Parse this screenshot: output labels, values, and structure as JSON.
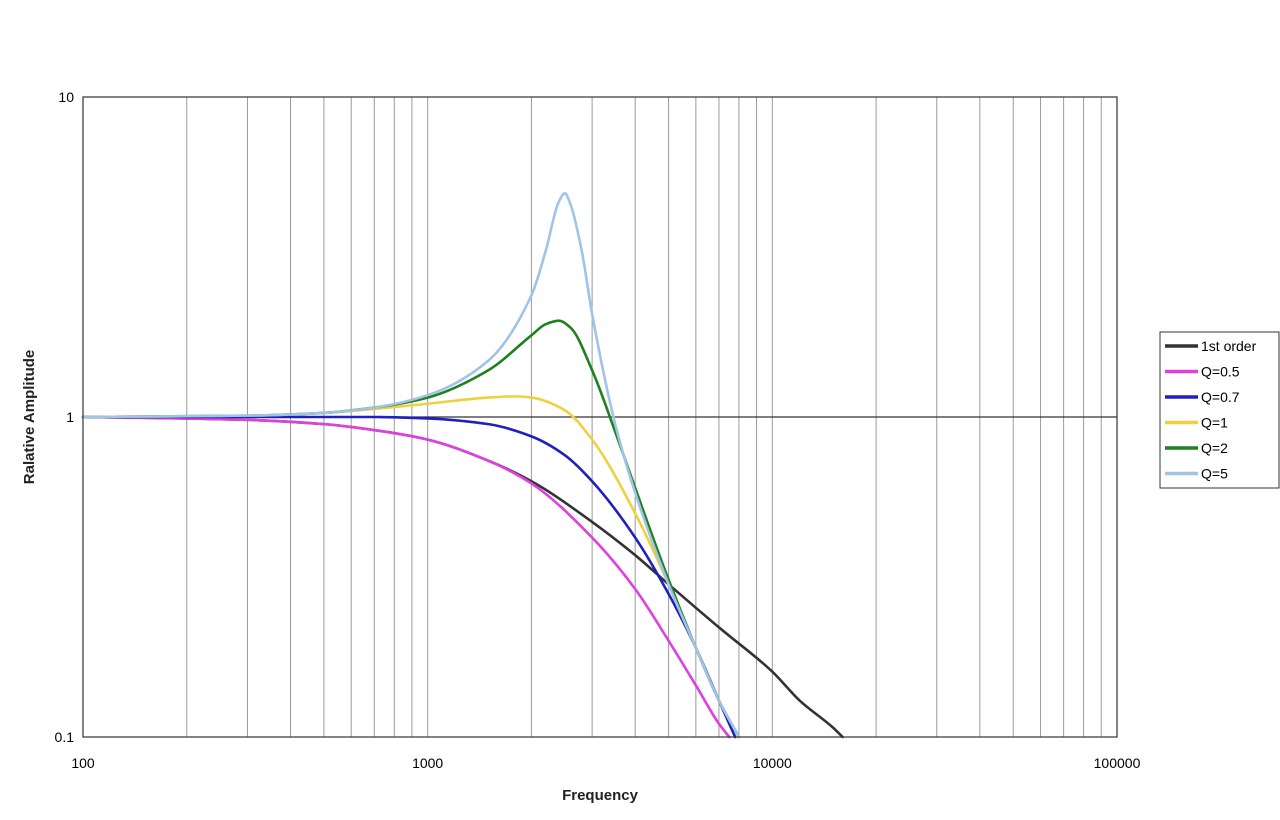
{
  "chart_data": {
    "type": "line",
    "title": "",
    "xlabel": "Frequency",
    "ylabel": "Ralative Amplitude",
    "x_scale": "log",
    "y_scale": "log",
    "xlim": [
      100,
      100000
    ],
    "ylim": [
      0.1,
      10
    ],
    "x_tick_labels": [
      "100",
      "1000",
      "10000",
      "100000"
    ],
    "y_tick_labels": [
      "10",
      "1",
      "0.1"
    ],
    "grid": "vertical lines at every log subdivision; horizontal line at 1",
    "legend_position": "right",
    "series": [
      {
        "name": "1st order",
        "color": "#333333",
        "x": [
          100,
          200,
          300,
          500,
          700,
          1000,
          1500,
          2000,
          3000,
          4000,
          5000,
          7000,
          10000,
          12000,
          15000,
          16000
        ],
        "y": [
          1.0,
          0.99,
          0.98,
          0.95,
          0.91,
          0.85,
          0.73,
          0.63,
          0.47,
          0.37,
          0.3,
          0.22,
          0.16,
          0.13,
          0.107,
          0.1
        ]
      },
      {
        "name": "Q=0.5",
        "color": "#e040e0",
        "x": [
          100,
          200,
          300,
          500,
          700,
          1000,
          1500,
          2000,
          3000,
          4000,
          5000,
          6000,
          7000,
          7500
        ],
        "y": [
          1.0,
          0.99,
          0.98,
          0.95,
          0.91,
          0.85,
          0.73,
          0.62,
          0.42,
          0.29,
          0.2,
          0.145,
          0.11,
          0.1
        ]
      },
      {
        "name": "Q=0.7",
        "color": "#2020c0",
        "x": [
          100,
          300,
          500,
          700,
          1000,
          1500,
          2000,
          2500,
          3000,
          4000,
          5000,
          6000,
          7000,
          7800
        ],
        "y": [
          1.0,
          1.0,
          1.0,
          1.0,
          0.99,
          0.95,
          0.87,
          0.76,
          0.63,
          0.42,
          0.28,
          0.19,
          0.13,
          0.1
        ]
      },
      {
        "name": "Q=1",
        "color": "#f0d040",
        "x": [
          100,
          300,
          500,
          700,
          1000,
          1500,
          1800,
          2000,
          2500,
          3000,
          4000,
          5000,
          6000,
          7000,
          8000
        ],
        "y": [
          1.0,
          1.01,
          1.03,
          1.06,
          1.1,
          1.15,
          1.16,
          1.15,
          1.05,
          0.85,
          0.5,
          0.3,
          0.19,
          0.13,
          0.1
        ]
      },
      {
        "name": "Q=2",
        "color": "#208020",
        "x": [
          100,
          300,
          500,
          700,
          1000,
          1500,
          2000,
          2200,
          2400,
          2600,
          3000,
          3500,
          4000,
          5000,
          6000,
          7000,
          8000
        ],
        "y": [
          1.0,
          1.01,
          1.03,
          1.07,
          1.15,
          1.4,
          1.8,
          1.95,
          2.0,
          1.9,
          1.4,
          0.9,
          0.6,
          0.31,
          0.19,
          0.13,
          0.1
        ]
      },
      {
        "name": "Q=5",
        "color": "#a0c4e8",
        "x": [
          100,
          300,
          500,
          700,
          1000,
          1500,
          2000,
          2200,
          2400,
          2500,
          2600,
          2800,
          3000,
          3500,
          4000,
          5000,
          6000,
          7000,
          8000
        ],
        "y": [
          1.0,
          1.01,
          1.03,
          1.07,
          1.17,
          1.5,
          2.4,
          3.3,
          4.7,
          5.0,
          4.6,
          3.3,
          2.1,
          0.95,
          0.58,
          0.3,
          0.19,
          0.13,
          0.1
        ]
      }
    ]
  }
}
